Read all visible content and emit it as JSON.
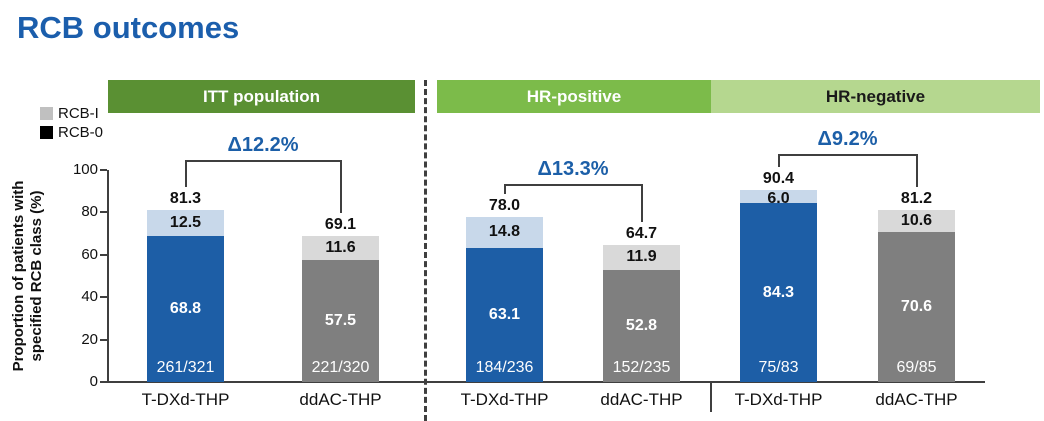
{
  "title": "RCB outcomes",
  "legend": {
    "items": [
      {
        "label": "RCB-I",
        "color": "#c0c0c0"
      },
      {
        "label": "RCB-0",
        "color": "#000000"
      }
    ]
  },
  "y_axis": {
    "title_line1": "Proportion of patients with",
    "title_line2": "specified RCB class (%)",
    "ticks": [
      "100",
      "80",
      "60",
      "40",
      "20",
      "0"
    ]
  },
  "chart_data": {
    "type": "bar",
    "stacked": true,
    "title": "RCB outcomes",
    "ylabel": "Proportion of patients with specified RCB class (%)",
    "ylim": [
      0,
      100
    ],
    "legend_entries": [
      "RCB-I",
      "RCB-0"
    ],
    "accent_color": "#1c5fa8",
    "groups": [
      {
        "header": "ITT population",
        "header_bg": "#5a9033",
        "header_text": "#ffffff",
        "delta": "Δ12.2%",
        "bars": [
          {
            "arm": "T-DXd-THP",
            "total": "81.3",
            "rcb1": "12.5",
            "rcb0": "68.8",
            "fraction": "261/321",
            "rcb0_color": "#1d5ea6",
            "rcb1_color": "#c8d8ea"
          },
          {
            "arm": "ddAC-THP",
            "total": "69.1",
            "rcb1": "11.6",
            "rcb0": "57.5",
            "fraction": "221/320",
            "rcb0_color": "#7f7f7f",
            "rcb1_color": "#d9d9d9"
          }
        ]
      },
      {
        "header": "HR-positive",
        "header_bg": "#7cbb4a",
        "header_text": "#ffffff",
        "delta": "Δ13.3%",
        "bars": [
          {
            "arm": "T-DXd-THP",
            "total": "78.0",
            "rcb1": "14.8",
            "rcb0": "63.1",
            "fraction": "184/236",
            "rcb0_color": "#1d5ea6",
            "rcb1_color": "#c8d8ea"
          },
          {
            "arm": "ddAC-THP",
            "total": "64.7",
            "rcb1": "11.9",
            "rcb0": "52.8",
            "fraction": "152/235",
            "rcb0_color": "#7f7f7f",
            "rcb1_color": "#d9d9d9"
          }
        ]
      },
      {
        "header": "HR-negative",
        "header_bg": "#b5d78f",
        "header_text": "#1a1a1a",
        "delta": "Δ9.2%",
        "bars": [
          {
            "arm": "T-DXd-THP",
            "total": "90.4",
            "rcb1": "6.0",
            "rcb0": "84.3",
            "fraction": "75/83",
            "rcb0_color": "#1d5ea6",
            "rcb1_color": "#c8d8ea"
          },
          {
            "arm": "ddAC-THP",
            "total": "81.2",
            "rcb1": "10.6",
            "rcb0": "70.6",
            "fraction": "69/85",
            "rcb0_color": "#7f7f7f",
            "rcb1_color": "#d9d9d9"
          }
        ]
      }
    ]
  }
}
